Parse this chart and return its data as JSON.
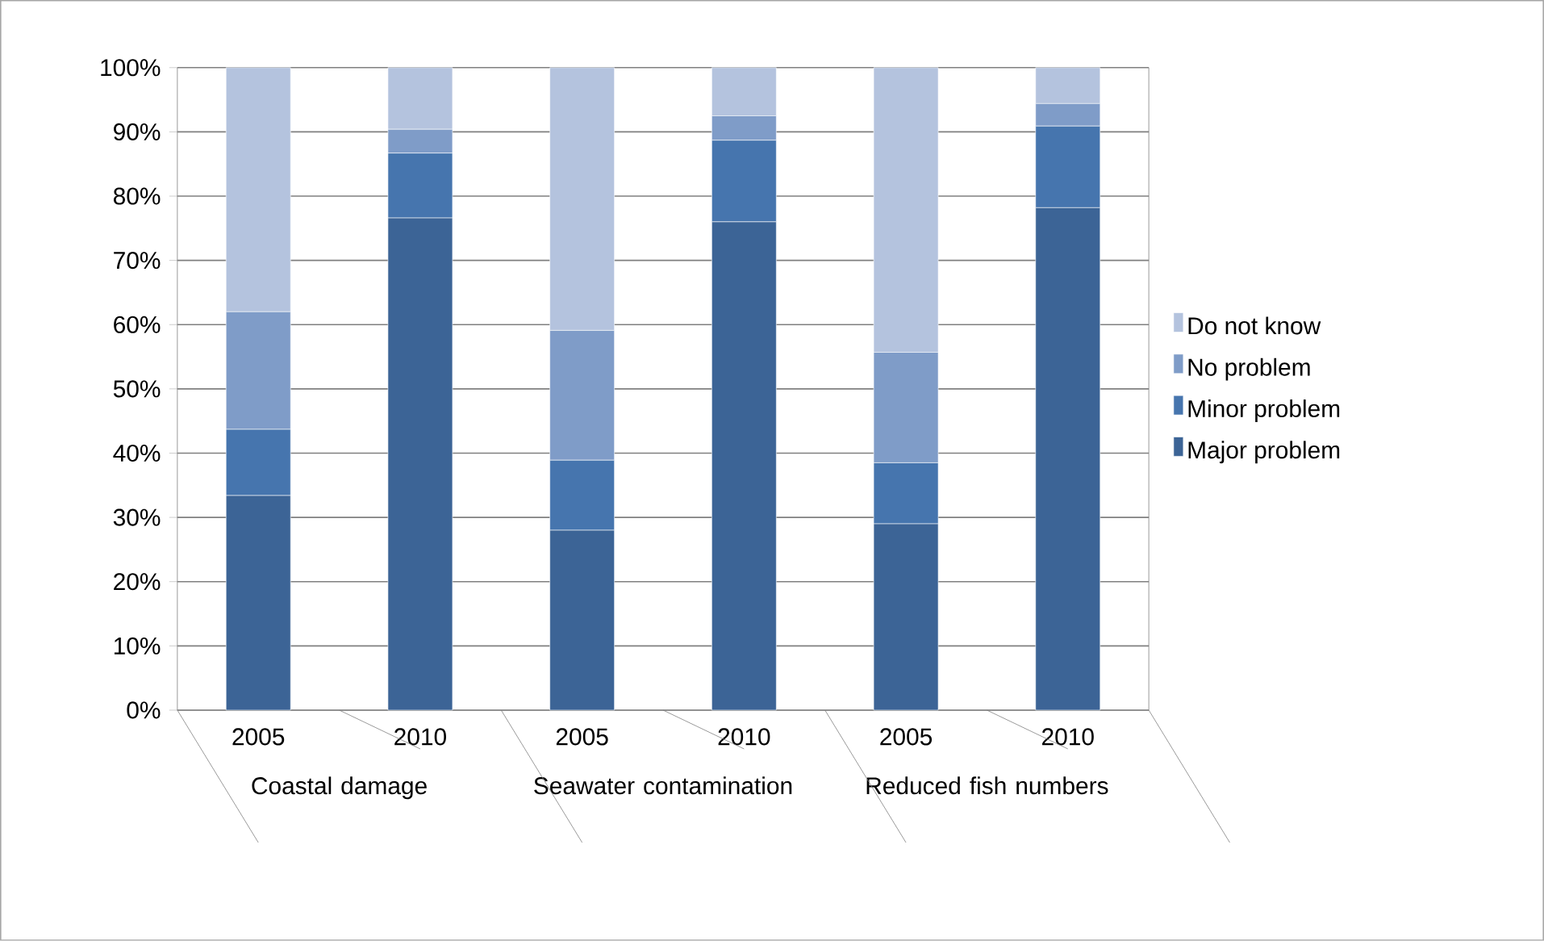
{
  "chart_data": {
    "type": "bar",
    "stacked": true,
    "categories": [
      "2005",
      "2010",
      "2005",
      "2010",
      "2005",
      "2010"
    ],
    "series": [
      {
        "name": "Major problem",
        "color": "#3c6496",
        "values": [
          33.4,
          76.6,
          28.0,
          76.0,
          29.0,
          78.2
        ]
      },
      {
        "name": "Minor problem",
        "color": "#4675ae",
        "values": [
          10.3,
          10.1,
          10.9,
          12.7,
          9.5,
          12.7
        ]
      },
      {
        "name": "No problem",
        "color": "#7f9cc8",
        "values": [
          18.3,
          3.7,
          20.2,
          3.8,
          17.2,
          3.5
        ]
      },
      {
        "name": "Do not know",
        "color": "#b4c3de",
        "values": [
          38.0,
          9.6,
          40.9,
          7.5,
          44.3,
          5.6
        ]
      }
    ],
    "annotations": [
      "Coastal damage",
      "Seawater contamination",
      "Reduced fish numbers"
    ],
    "ylim": [
      0,
      100
    ],
    "yticks": [
      {
        "value": 0,
        "label": "0%"
      },
      {
        "value": 10,
        "label": "10%"
      },
      {
        "value": 20,
        "label": "20%"
      },
      {
        "value": 30,
        "label": "30%"
      },
      {
        "value": 40,
        "label": "40%"
      },
      {
        "value": 50,
        "label": "50%"
      },
      {
        "value": 60,
        "label": "60%"
      },
      {
        "value": 70,
        "label": "70%"
      },
      {
        "value": 80,
        "label": "80%"
      },
      {
        "value": 90,
        "label": "90%"
      },
      {
        "value": 100,
        "label": "100%"
      }
    ],
    "grid": "y",
    "legend": "right"
  }
}
